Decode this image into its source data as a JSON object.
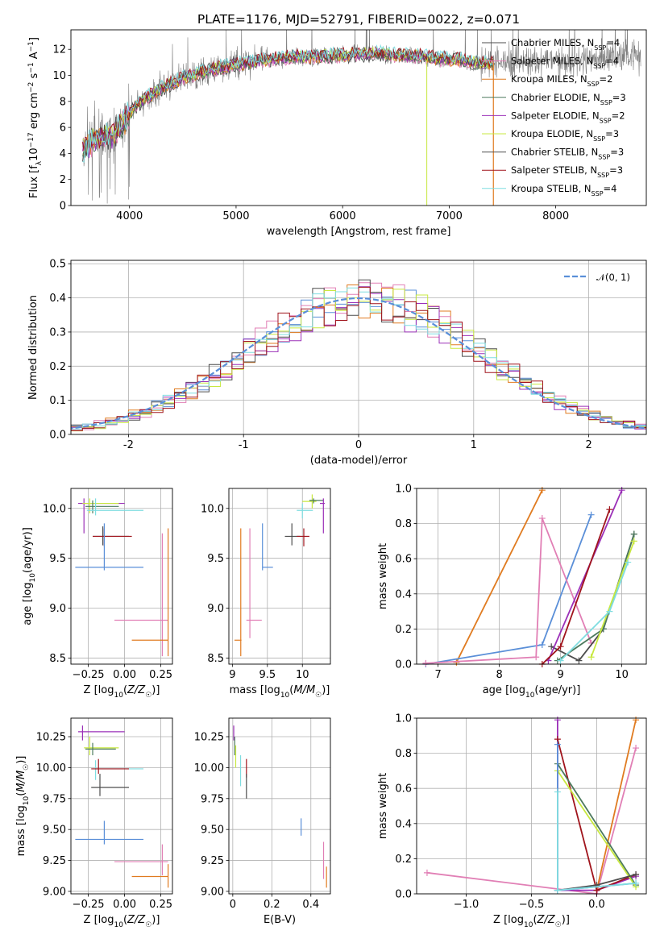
{
  "figure": {
    "title": "PLATE=1176, MJD=52791, FIBERID=0022, z=0.071"
  },
  "chart_data": [
    {
      "id": "spectrum",
      "type": "line",
      "xlabel": "wavelength [Angstrom, rest frame]",
      "ylabel": "Flux [fλ10⁻¹⁷ erg cm⁻² s⁻¹ A⁻¹]",
      "xlim": [
        3450,
        8850
      ],
      "ylim": [
        0,
        13.5
      ],
      "xticks": [
        4000,
        5000,
        6000,
        7000,
        8000
      ],
      "yticks": [
        0,
        2,
        4,
        6,
        8,
        10,
        12
      ],
      "grid": false,
      "legend_position": "right",
      "observed_color": "#7f7f7f",
      "continuum": {
        "x": [
          3560,
          3650,
          3750,
          3850,
          3950,
          4050,
          4150,
          4300,
          4500,
          4700,
          4900,
          5100,
          5300,
          5500,
          5700,
          5900,
          6100,
          6300,
          6500,
          6700,
          6900,
          7100,
          7300,
          7500,
          7700,
          7900,
          8100,
          8300,
          8500,
          8800
        ],
        "y": [
          4.2,
          5.0,
          5.3,
          5.5,
          6.4,
          7.6,
          8.2,
          9.0,
          9.8,
          10.3,
          10.7,
          11.0,
          11.2,
          11.4,
          11.45,
          11.5,
          11.6,
          11.7,
          11.55,
          11.5,
          11.25,
          11.2,
          10.9,
          11.0,
          11.1,
          11.2,
          11.15,
          11.3,
          11.4,
          11.5
        ]
      },
      "series": [
        {
          "name": "Chabrier MILES",
          "nssp": "4",
          "color": "#4d4d4d"
        },
        {
          "name": "Salpeter MILES",
          "nssp": "4",
          "color": "#e17fb5"
        },
        {
          "name": "Kroupa MILES",
          "nssp": "2",
          "color": "#e07b20"
        },
        {
          "name": "Chabrier ELODIE",
          "nssp": "3",
          "color": "#4d7a5e"
        },
        {
          "name": "Salpeter ELODIE",
          "nssp": "2",
          "color": "#9b30b8"
        },
        {
          "name": "Kroupa ELODIE",
          "nssp": "3",
          "color": "#c8e840"
        },
        {
          "name": "Chabrier STELIB",
          "nssp": "3",
          "color": "#4d4d4d"
        },
        {
          "name": "Salpeter STELIB",
          "nssp": "3",
          "color": "#a0141c"
        },
        {
          "name": "Kroupa STELIB",
          "nssp": "4",
          "color": "#7fdde0"
        }
      ]
    },
    {
      "id": "residuals",
      "type": "line",
      "xlabel": "(data-model)/error",
      "ylabel": "Normed distribution",
      "xlim": [
        -2.5,
        2.5
      ],
      "ylim": [
        0,
        0.51
      ],
      "xticks": [
        -2,
        -1,
        0,
        1,
        2
      ],
      "yticks": [
        0.0,
        0.1,
        0.2,
        0.3,
        0.4,
        0.5
      ],
      "grid": true,
      "legend_position": "top-right",
      "reference": {
        "name": "𝒩(0, 1)",
        "color": "#5a8fd8",
        "style": "dashed"
      },
      "bin_width": 0.1,
      "series_colors": [
        "#5a8fd8",
        "#e07b20",
        "#e17fb5",
        "#4d4d4d",
        "#9b30b8",
        "#c8e840",
        "#7fdde0",
        "#a0141c"
      ]
    },
    {
      "id": "age_vs_Z",
      "type": "scatter",
      "xlabel": "Z [log10(Z/Z☉)]",
      "ylabel": "age  [log10(age/yr)]",
      "xlim": [
        -0.37,
        0.33
      ],
      "ylim": [
        8.44,
        10.2
      ],
      "xticks": [
        -0.25,
        0.0,
        0.25
      ],
      "xtick_labels": [
        "−0.25",
        "0.00",
        "0.25"
      ],
      "yticks": [
        8.5,
        9.0,
        9.5,
        10.0
      ],
      "grid": true,
      "points": [
        {
          "x": -0.28,
          "y": 10.05,
          "ex": [
            -0.32,
            0.0
          ],
          "ey": [
            9.75,
            10.1
          ],
          "color": "#9b30b8"
        },
        {
          "x": -0.24,
          "y": 10.05,
          "ex": [
            -0.29,
            -0.04
          ],
          "ey": [
            9.95,
            10.1
          ],
          "color": "#c8e840"
        },
        {
          "x": -0.22,
          "y": 10.02,
          "ex": [
            -0.27,
            -0.04
          ],
          "ey": [
            9.95,
            10.08
          ],
          "color": "#4d7a5e"
        },
        {
          "x": -0.2,
          "y": 9.98,
          "ex": [
            -0.26,
            0.13
          ],
          "ey": [
            9.93,
            10.1
          ],
          "color": "#7fdde0"
        },
        {
          "x": -0.15,
          "y": 9.72,
          "ex": [
            -0.22,
            0.03
          ],
          "ey": [
            9.63,
            9.82
          ],
          "color": "#4d4d4d"
        },
        {
          "x": -0.14,
          "y": 9.72,
          "ex": [
            -0.22,
            0.05
          ],
          "ey": [
            9.62,
            9.8
          ],
          "color": "#a0141c"
        },
        {
          "x": -0.14,
          "y": 9.41,
          "ex": [
            -0.34,
            0.13
          ],
          "ey": [
            9.38,
            9.85
          ],
          "color": "#5a8fd8"
        },
        {
          "x": 0.26,
          "y": 8.88,
          "ex": [
            -0.07,
            0.3
          ],
          "ey": [
            8.52,
            9.75
          ],
          "color": "#e17fb5"
        },
        {
          "x": 0.3,
          "y": 8.68,
          "ex": [
            0.05,
            0.3
          ],
          "ey": [
            8.52,
            9.8
          ],
          "color": "#e07b20"
        }
      ]
    },
    {
      "id": "age_vs_mass",
      "type": "scatter",
      "xlabel": "mass [log10(M/M☉)]",
      "xlim": [
        8.95,
        10.4
      ],
      "ylim": [
        8.44,
        10.2
      ],
      "xticks": [
        9.0,
        9.5,
        10.0
      ],
      "yticks": [
        8.5,
        9.0,
        9.5,
        10.0
      ],
      "grid": true,
      "points": [
        {
          "x": 9.12,
          "y": 8.68,
          "ex": [
            9.03,
            9.13
          ],
          "ey": [
            8.52,
            9.8
          ],
          "color": "#e07b20"
        },
        {
          "x": 9.25,
          "y": 8.88,
          "ex": [
            9.2,
            9.42
          ],
          "ey": [
            8.7,
            9.8
          ],
          "color": "#e17fb5"
        },
        {
          "x": 9.43,
          "y": 9.41,
          "ex": [
            9.43,
            9.58
          ],
          "ey": [
            9.38,
            9.85
          ],
          "color": "#5a8fd8"
        },
        {
          "x": 9.85,
          "y": 9.72,
          "ex": [
            9.75,
            9.97
          ],
          "ey": [
            9.63,
            9.85
          ],
          "color": "#4d4d4d"
        },
        {
          "x": 10.02,
          "y": 9.72,
          "ex": [
            9.92,
            10.1
          ],
          "ey": [
            9.62,
            9.8
          ],
          "color": "#a0141c"
        },
        {
          "x": 10.0,
          "y": 9.98,
          "ex": [
            9.92,
            10.15
          ],
          "ey": [
            9.9,
            10.05
          ],
          "color": "#7fdde0"
        },
        {
          "x": 10.14,
          "y": 10.07,
          "ex": [
            10.0,
            10.2
          ],
          "ey": [
            10.0,
            10.14
          ],
          "color": "#c8e840"
        },
        {
          "x": 10.16,
          "y": 10.08,
          "ex": [
            10.1,
            10.3
          ],
          "ey": [
            10.05,
            10.1
          ],
          "color": "#4d7a5e"
        },
        {
          "x": 10.3,
          "y": 10.05,
          "ex": [
            10.25,
            10.32
          ],
          "ey": [
            9.75,
            10.1
          ],
          "color": "#9b30b8"
        }
      ]
    },
    {
      "id": "weight_vs_age",
      "type": "line",
      "xlabel": "age  [log10(age/yr)]",
      "ylabel": "mass weight",
      "xlim": [
        6.65,
        10.4
      ],
      "ylim": [
        0,
        1
      ],
      "xticks": [
        7,
        8,
        9,
        10
      ],
      "yticks": [
        0.0,
        0.2,
        0.4,
        0.6,
        0.8,
        1.0
      ],
      "grid": true,
      "series": [
        {
          "color": "#e07b20",
          "x": [
            7.3,
            8.7
          ],
          "y": [
            0.01,
            0.99
          ]
        },
        {
          "color": "#5a8fd8",
          "x": [
            6.8,
            8.7,
            9.5
          ],
          "y": [
            0.0,
            0.11,
            0.85
          ]
        },
        {
          "color": "#e17fb5",
          "x": [
            6.8,
            8.6,
            8.7,
            9.5
          ],
          "y": [
            0.005,
            0.04,
            0.83,
            0.12
          ]
        },
        {
          "color": "#4d4d4d",
          "x": [
            8.85,
            9.3,
            9.7,
            10.2
          ],
          "y": [
            0.1,
            0.02,
            0.2,
            0.74
          ]
        },
        {
          "color": "#4d7a5e",
          "x": [
            8.95,
            9.7,
            10.2
          ],
          "y": [
            0.02,
            0.2,
            0.74
          ]
        },
        {
          "color": "#9b30b8",
          "x": [
            8.8,
            10.0
          ],
          "y": [
            0.02,
            0.99
          ]
        },
        {
          "color": "#a0141c",
          "x": [
            8.7,
            9.0,
            9.8
          ],
          "y": [
            0.0,
            0.1,
            0.88
          ]
        },
        {
          "color": "#c8e840",
          "x": [
            9.5,
            10.2
          ],
          "y": [
            0.04,
            0.7
          ]
        },
        {
          "color": "#7fdde0",
          "x": [
            9.0,
            9.8,
            10.1
          ],
          "y": [
            0.02,
            0.3,
            0.58
          ]
        }
      ]
    },
    {
      "id": "mass_vs_Z",
      "type": "scatter",
      "xlabel": "Z [log10(Z/Z☉)]",
      "ylabel": "mass [log10(M/M☉)]",
      "xlim": [
        -0.37,
        0.33
      ],
      "ylim": [
        8.98,
        10.4
      ],
      "xticks": [
        -0.25,
        0.0,
        0.25
      ],
      "xtick_labels": [
        "−0.25",
        "0.00",
        "0.25"
      ],
      "yticks": [
        9.0,
        9.25,
        9.5,
        9.75,
        10.0,
        10.25
      ],
      "grid": true,
      "points": [
        {
          "x": -0.29,
          "y": 10.29,
          "ex": [
            -0.32,
            0.0
          ],
          "ey": [
            10.22,
            10.34
          ],
          "color": "#9b30b8"
        },
        {
          "x": -0.24,
          "y": 10.16,
          "ex": [
            -0.28,
            -0.04
          ],
          "ey": [
            10.1,
            10.25
          ],
          "color": "#c8e840"
        },
        {
          "x": -0.22,
          "y": 10.15,
          "ex": [
            -0.27,
            -0.06
          ],
          "ey": [
            10.1,
            10.2
          ],
          "color": "#4d7a5e"
        },
        {
          "x": -0.2,
          "y": 9.99,
          "ex": [
            -0.22,
            0.13
          ],
          "ey": [
            9.9,
            10.06
          ],
          "color": "#7fdde0"
        },
        {
          "x": -0.18,
          "y": 9.99,
          "ex": [
            -0.23,
            0.03
          ],
          "ey": [
            9.95,
            10.07
          ],
          "color": "#a0141c"
        },
        {
          "x": -0.17,
          "y": 9.84,
          "ex": [
            -0.23,
            0.03
          ],
          "ey": [
            9.77,
            9.95
          ],
          "color": "#4d4d4d"
        },
        {
          "x": -0.14,
          "y": 9.42,
          "ex": [
            -0.34,
            0.13
          ],
          "ey": [
            9.38,
            9.57
          ],
          "color": "#5a8fd8"
        },
        {
          "x": 0.26,
          "y": 9.24,
          "ex": [
            -0.07,
            0.3
          ],
          "ey": [
            9.13,
            9.38
          ],
          "color": "#e17fb5"
        },
        {
          "x": 0.3,
          "y": 9.12,
          "ex": [
            0.05,
            0.3
          ],
          "ey": [
            9.03,
            9.22
          ],
          "color": "#e07b20"
        }
      ]
    },
    {
      "id": "mass_vs_ebv",
      "type": "scatter",
      "xlabel": "E(B-V)",
      "xlim": [
        -0.02,
        0.5
      ],
      "ylim": [
        8.98,
        10.4
      ],
      "xticks": [
        0.0,
        0.2,
        0.4
      ],
      "yticks": [
        9.0,
        9.25,
        9.5,
        9.75,
        10.0,
        10.25
      ],
      "grid": true,
      "points": [
        {
          "x": 0.005,
          "y": 10.29,
          "ey": [
            10.22,
            10.34
          ],
          "color": "#9b30b8"
        },
        {
          "x": 0.01,
          "y": 10.16,
          "ey": [
            10.1,
            10.25
          ],
          "color": "#4d7a5e"
        },
        {
          "x": 0.015,
          "y": 10.1,
          "ey": [
            10.0,
            10.18
          ],
          "color": "#c8e840"
        },
        {
          "x": 0.04,
          "y": 9.99,
          "ey": [
            9.85,
            10.1
          ],
          "color": "#7fdde0"
        },
        {
          "x": 0.07,
          "y": 9.99,
          "ey": [
            9.92,
            10.07
          ],
          "color": "#a0141c"
        },
        {
          "x": 0.07,
          "y": 9.84,
          "ey": [
            9.75,
            9.95
          ],
          "color": "#4d4d4d"
        },
        {
          "x": 0.35,
          "y": 9.52,
          "ey": [
            9.45,
            9.59
          ],
          "color": "#5a8fd8"
        },
        {
          "x": 0.465,
          "y": 9.24,
          "ey": [
            9.1,
            9.4
          ],
          "color": "#e17fb5"
        },
        {
          "x": 0.48,
          "y": 9.12,
          "ey": [
            9.03,
            9.2
          ],
          "color": "#e07b20"
        }
      ]
    },
    {
      "id": "weight_vs_Z",
      "type": "line",
      "xlabel": "Z [log10(Z/Z☉)]",
      "ylabel": "mass weight",
      "xlim": [
        -1.38,
        0.38
      ],
      "ylim": [
        0,
        1
      ],
      "xticks": [
        -1.0,
        -0.5,
        0.0
      ],
      "xtick_labels": [
        "−1.0",
        "−0.5",
        "0.0"
      ],
      "yticks": [
        0.0,
        0.2,
        0.4,
        0.6,
        0.8,
        1.0
      ],
      "grid": true,
      "series": [
        {
          "color": "#e17fb5",
          "x": [
            -1.3,
            0.0,
            0.3
          ],
          "y": [
            0.12,
            0.0,
            0.83
          ]
        },
        {
          "color": "#e07b20",
          "x": [
            0.0,
            0.3
          ],
          "y": [
            0.02,
            0.99
          ]
        },
        {
          "color": "#9b30b8",
          "x": [
            -0.3,
            -0.3,
            0.0,
            0.3
          ],
          "y": [
            0.99,
            0.02,
            0.02,
            0.1
          ]
        },
        {
          "color": "#a0141c",
          "x": [
            -0.3,
            0.0,
            0.3
          ],
          "y": [
            0.88,
            0.02,
            0.11
          ]
        },
        {
          "color": "#4d7a5e",
          "x": [
            -0.3,
            0.3
          ],
          "y": [
            0.74,
            0.05
          ]
        },
        {
          "color": "#c8e840",
          "x": [
            -0.3,
            0.3
          ],
          "y": [
            0.7,
            0.04
          ]
        },
        {
          "color": "#4d4d4d",
          "x": [
            -0.3,
            0.0,
            0.3
          ],
          "y": [
            0.02,
            0.05,
            0.11
          ]
        },
        {
          "color": "#5a8fd8",
          "x": [
            -0.3,
            -0.3,
            0.3
          ],
          "y": [
            0.85,
            0.02,
            0.06
          ]
        },
        {
          "color": "#7fdde0",
          "x": [
            -0.3,
            -0.3,
            0.3
          ],
          "y": [
            0.58,
            0.02,
            0.06
          ]
        }
      ]
    }
  ]
}
